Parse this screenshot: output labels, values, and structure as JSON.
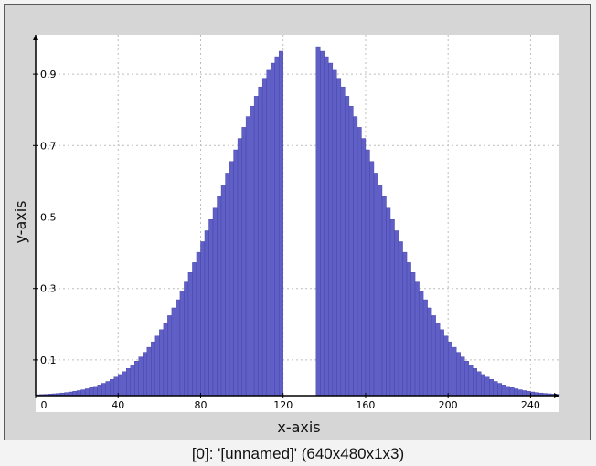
{
  "window": {
    "caption": "[0]: '[unnamed]' (640x480x1x3)"
  },
  "chart_data": {
    "type": "bar",
    "title": "",
    "xlabel": "x-axis",
    "ylabel": "y-axis",
    "xlim": [
      0,
      254
    ],
    "ylim": [
      0,
      1.0
    ],
    "x_ticks": [
      "0",
      "40",
      "80",
      "120",
      "160",
      "200",
      "240"
    ],
    "y_ticks": [
      "0.1",
      "0.3",
      "0.5",
      "0.7",
      "0.9"
    ],
    "grid": true,
    "bar_color": "#5f5fc6",
    "bar_edge_color": "#3f3fa6",
    "series": [
      {
        "x_start": 0,
        "x_end": 254,
        "bin_width": 2,
        "gaussian_mean": 128,
        "gaussian_sigma": 37,
        "gap": [
          120,
          136
        ],
        "values": []
      }
    ]
  }
}
